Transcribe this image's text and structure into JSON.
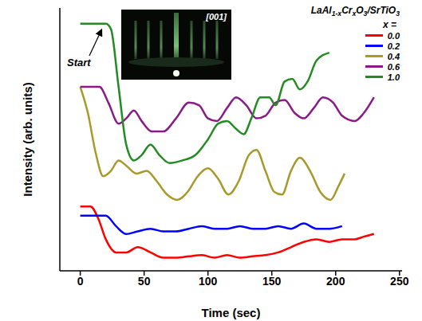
{
  "chart_data": {
    "type": "line",
    "x_label": "Time (sec)",
    "y_label": "Intensity (arb. units)",
    "legend_title": "LaAl1-xCrxO3/SrTiO3",
    "legend_subtitle": "x =",
    "annotation": "Start",
    "inset_label": "[001]",
    "legend": "top right",
    "tick_labels": "x",
    "xlim": [
      -16,
      252
    ],
    "xticks": [
      0,
      50,
      100,
      150,
      200,
      250
    ],
    "ylim": [
      0,
      100
    ],
    "series": [
      {
        "name": "0.0",
        "color": "#ff0000",
        "x": [
          0,
          8,
          14,
          20,
          28,
          36,
          45,
          55,
          65,
          75,
          85,
          95,
          105,
          115,
          125,
          135,
          145,
          155,
          165,
          175,
          185,
          195,
          205,
          215,
          222,
          230
        ],
        "values": [
          24.5,
          24.5,
          20,
          12,
          7,
          7,
          9,
          7,
          5,
          5,
          5.5,
          6,
          5,
          6,
          5,
          5.5,
          6,
          7,
          9,
          11,
          12,
          11,
          12,
          12,
          13,
          14
        ]
      },
      {
        "name": "0.2",
        "color": "#0000ff",
        "x": [
          0,
          10,
          20,
          28,
          36,
          45,
          55,
          65,
          75,
          85,
          95,
          105,
          115,
          125,
          135,
          145,
          155,
          165,
          175,
          185,
          195,
          205
        ],
        "values": [
          21,
          21,
          21,
          17,
          14,
          15,
          16,
          15,
          15,
          16,
          17,
          16,
          16,
          17,
          16,
          16,
          17,
          16,
          18,
          16,
          16,
          17
        ]
      },
      {
        "name": "0.4",
        "color": "#a89a2a",
        "x": [
          0,
          6,
          12,
          18,
          24,
          30,
          36,
          44,
          52,
          60,
          68,
          76,
          84,
          92,
          100,
          108,
          116,
          124,
          132,
          138,
          145,
          152,
          158,
          165,
          172,
          180,
          188,
          196,
          202,
          207
        ],
        "values": [
          70,
          60,
          45,
          36,
          38,
          42,
          40,
          37,
          38,
          34,
          29,
          27,
          30,
          36,
          39,
          35,
          29,
          34,
          44,
          46,
          38,
          30,
          29,
          38,
          43,
          38,
          30,
          27,
          32,
          37
        ]
      },
      {
        "name": "0.6",
        "color": "#8b1a89",
        "x": [
          0,
          15,
          22,
          30,
          36,
          42,
          48,
          56,
          65,
          75,
          85,
          93,
          100,
          107,
          115,
          122,
          130,
          138,
          145,
          153,
          160,
          168,
          175,
          183,
          190,
          198,
          205,
          215,
          222,
          230
        ],
        "values": [
          70,
          70,
          64,
          56,
          58,
          61,
          57,
          53,
          53,
          58,
          64,
          63,
          58,
          57,
          62,
          66,
          63,
          58,
          59,
          64,
          65,
          60,
          58,
          62,
          66,
          64,
          59,
          57,
          60,
          66
        ]
      },
      {
        "name": "1.0",
        "color": "#228b22",
        "x": [
          0,
          10,
          20,
          24,
          30,
          36,
          42,
          48,
          55,
          62,
          70,
          80,
          90,
          100,
          108,
          115,
          122,
          128,
          134,
          141,
          148,
          153,
          160,
          166,
          172,
          178,
          185,
          195
        ],
        "values": [
          94,
          94,
          94,
          92,
          70,
          48,
          42,
          44,
          48,
          44,
          41,
          42,
          44,
          50,
          56,
          57,
          54,
          52,
          58,
          66,
          66,
          63,
          72,
          73,
          69,
          72,
          80,
          83
        ]
      }
    ]
  }
}
